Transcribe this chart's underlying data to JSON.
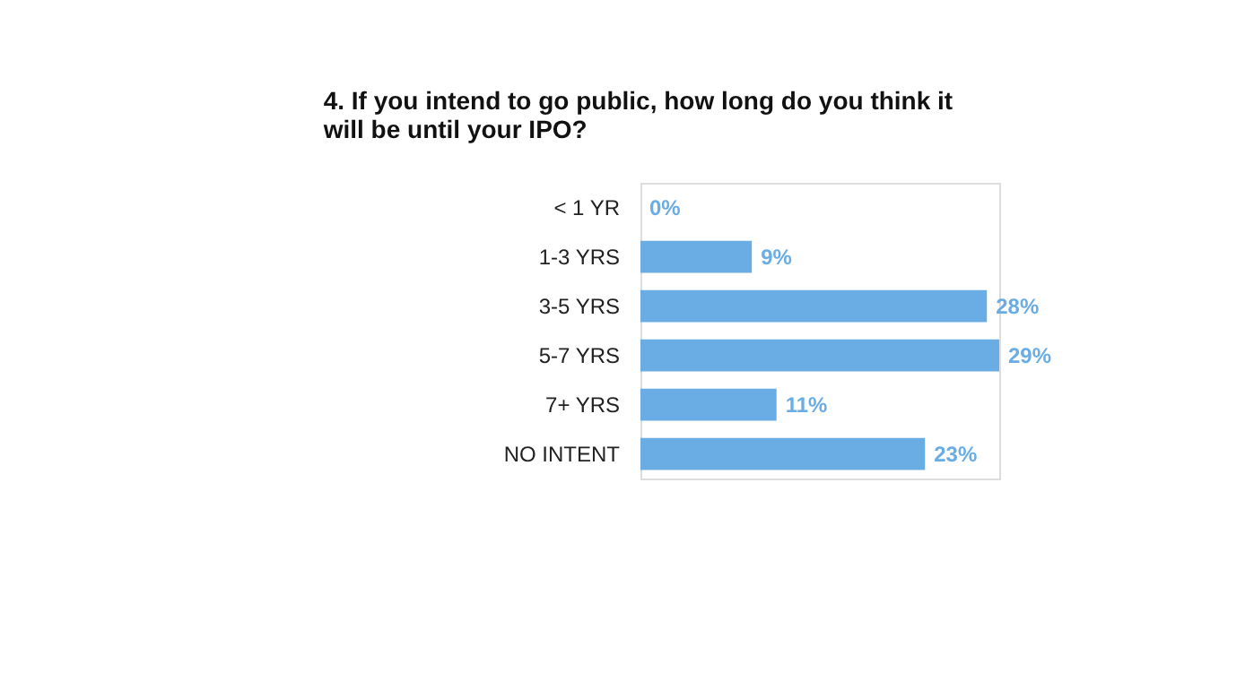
{
  "chart_data": {
    "type": "bar",
    "orientation": "horizontal",
    "title": "4. If you intend to go public, how long do you think it will be until your IPO?",
    "categories": [
      "< 1 YR",
      "1-3 YRS",
      "3-5 YRS",
      "5-7 YRS",
      "7+ YRS",
      "NO INTENT"
    ],
    "values": [
      0,
      9,
      28,
      29,
      11,
      23
    ],
    "value_labels": [
      "0%",
      "9%",
      "28%",
      "29%",
      "11%",
      "23%"
    ],
    "color": "#6aade4"
  }
}
